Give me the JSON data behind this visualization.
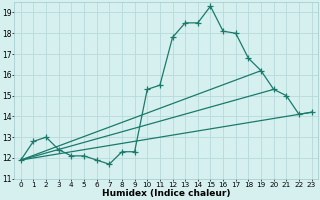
{
  "xlabel": "Humidex (Indice chaleur)",
  "ylabel": "",
  "background_color": "#d6f0f0",
  "grid_color": "#b8dada",
  "line_color": "#1a7a6a",
  "xlim": [
    -0.5,
    23.5
  ],
  "ylim": [
    11,
    19.5
  ],
  "xtick_labels": [
    "0",
    "1",
    "2",
    "3",
    "4",
    "5",
    "6",
    "7",
    "8",
    "9",
    "10",
    "11",
    "12",
    "13",
    "14",
    "15",
    "16",
    "17",
    "18",
    "19",
    "20",
    "21",
    "22",
    "23"
  ],
  "xticks": [
    0,
    1,
    2,
    3,
    4,
    5,
    6,
    7,
    8,
    9,
    10,
    11,
    12,
    13,
    14,
    15,
    16,
    17,
    18,
    19,
    20,
    21,
    22,
    23
  ],
  "yticks": [
    11,
    12,
    13,
    14,
    15,
    16,
    17,
    18,
    19
  ],
  "series1_x": [
    0,
    1,
    2,
    3,
    4,
    5,
    6,
    7,
    8,
    9,
    10,
    11,
    12,
    13,
    14,
    15,
    16,
    17,
    18,
    19,
    20,
    21,
    22,
    23
  ],
  "series1_y": [
    11.9,
    12.8,
    13.0,
    12.4,
    12.1,
    12.1,
    11.9,
    11.7,
    12.3,
    12.3,
    15.3,
    15.5,
    17.8,
    18.5,
    18.5,
    19.3,
    18.1,
    18.0,
    16.8,
    16.2,
    15.3,
    15.0,
    14.1,
    14.2
  ],
  "series2_x": [
    0,
    23
  ],
  "series2_y": [
    11.9,
    14.2
  ],
  "series3_x": [
    0,
    19
  ],
  "series3_y": [
    11.9,
    16.2
  ],
  "series4_x": [
    0,
    20
  ],
  "series4_y": [
    11.9,
    15.3
  ],
  "marker": "+",
  "markersize": 4,
  "linewidth": 0.9
}
